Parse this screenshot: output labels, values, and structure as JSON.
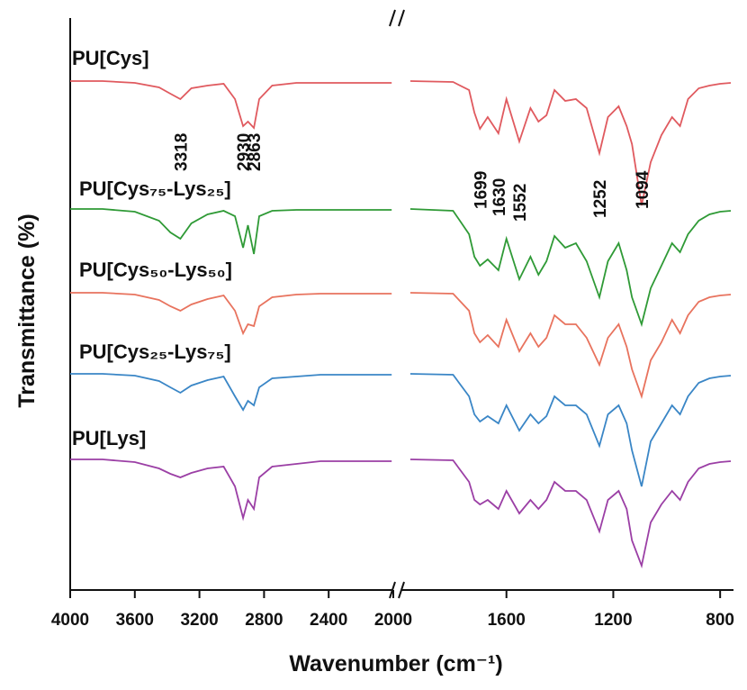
{
  "chart_data": {
    "type": "line",
    "x_label": "Wavenumber (cm⁻¹)",
    "y_label": "Transmittance (%)",
    "xlim_segments": [
      [
        4000,
        2000
      ],
      [
        2000,
        750
      ]
    ],
    "ylim": [
      0,
      635
    ],
    "xticks": [
      4000,
      3600,
      3200,
      2800,
      2400,
      2000,
      1600,
      1200,
      800
    ],
    "x": [
      4000,
      3800,
      3600,
      3450,
      3380,
      3318,
      3250,
      3150,
      3050,
      2980,
      2930,
      2900,
      2863,
      2830,
      2750,
      2600,
      2450,
      2300,
      2010,
      1980,
      1960,
      1800,
      1740,
      1720,
      1699,
      1670,
      1630,
      1600,
      1552,
      1510,
      1480,
      1450,
      1420,
      1380,
      1340,
      1300,
      1252,
      1220,
      1180,
      1150,
      1130,
      1094,
      1060,
      1020,
      980,
      950,
      920,
      880,
      840,
      800,
      760
    ],
    "peak_labels": [
      3318,
      2930,
      2863,
      1699,
      1630,
      1552,
      1252,
      1094
    ],
    "series": [
      {
        "name": "PU[Cys]",
        "color": "#e05a5f",
        "values": [
          565,
          565,
          563,
          558,
          551,
          545,
          557,
          560,
          562,
          545,
          515,
          520,
          513,
          545,
          560,
          563,
          563,
          563,
          563,
          null,
          565,
          564,
          555,
          530,
          512,
          525,
          507,
          545,
          498,
          535,
          520,
          527,
          555,
          543,
          545,
          535,
          485,
          525,
          537,
          515,
          495,
          427,
          475,
          505,
          525,
          515,
          545,
          557,
          560,
          562,
          563
        ]
      },
      {
        "name": "PU[Cys₇₅-Lys₂₅]",
        "color": "#2f9a36",
        "values": [
          423,
          423,
          420,
          410,
          397,
          390,
          407,
          417,
          421,
          415,
          380,
          405,
          373,
          415,
          421,
          422,
          422,
          422,
          422,
          null,
          423,
          421,
          395,
          370,
          360,
          367,
          355,
          390,
          345,
          370,
          350,
          365,
          393,
          380,
          385,
          365,
          325,
          365,
          385,
          355,
          325,
          295,
          335,
          360,
          385,
          375,
          395,
          410,
          417,
          420,
          421
        ]
      },
      {
        "name": "PU[Cys₅₀-Lys₅₀]",
        "color": "#e8735e",
        "values": [
          330,
          330,
          328,
          322,
          315,
          310,
          317,
          323,
          327,
          310,
          285,
          295,
          293,
          315,
          325,
          328,
          329,
          329,
          329,
          null,
          330,
          329,
          310,
          285,
          275,
          283,
          270,
          300,
          265,
          285,
          270,
          280,
          305,
          295,
          295,
          280,
          250,
          280,
          295,
          270,
          245,
          215,
          255,
          275,
          300,
          285,
          305,
          320,
          325,
          327,
          328
        ]
      },
      {
        "name": "PU[Cys₂₅-Lys₇₅]",
        "color": "#3a86c6",
        "values": [
          240,
          240,
          238,
          232,
          225,
          219,
          227,
          233,
          237,
          215,
          200,
          210,
          205,
          225,
          235,
          237,
          239,
          239,
          239,
          null,
          240,
          239,
          215,
          195,
          187,
          193,
          185,
          205,
          177,
          195,
          185,
          193,
          215,
          205,
          205,
          195,
          160,
          195,
          205,
          185,
          155,
          115,
          165,
          185,
          205,
          195,
          215,
          230,
          235,
          237,
          238
        ]
      },
      {
        "name": "PU[Lys]",
        "color": "#9b3fa5",
        "values": [
          145,
          145,
          142,
          135,
          129,
          125,
          130,
          135,
          137,
          115,
          80,
          100,
          90,
          125,
          137,
          140,
          143,
          143,
          143,
          null,
          145,
          144,
          120,
          100,
          95,
          100,
          90,
          110,
          85,
          100,
          90,
          100,
          120,
          110,
          110,
          100,
          65,
          100,
          110,
          90,
          55,
          27,
          75,
          95,
          110,
          100,
          120,
          135,
          140,
          142,
          143
        ]
      }
    ]
  }
}
